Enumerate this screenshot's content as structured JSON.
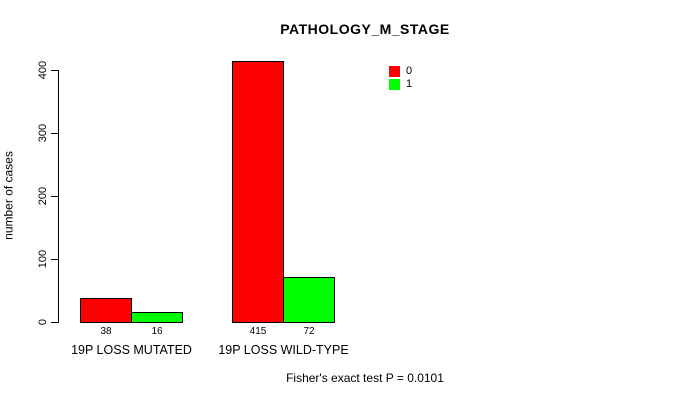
{
  "chart_data": {
    "type": "bar",
    "title": "PATHOLOGY_M_STAGE",
    "ylabel": "number of cases",
    "xlabel": "",
    "ylim": [
      0,
      400
    ],
    "yticks": [
      0,
      100,
      200,
      300,
      400
    ],
    "categories": [
      "19P LOSS MUTATED",
      "19P LOSS WILD-TYPE"
    ],
    "series": [
      {
        "name": "0",
        "color": "#ff0000",
        "values": [
          38,
          415
        ]
      },
      {
        "name": "1",
        "color": "#00ff00",
        "values": [
          16,
          72
        ]
      }
    ],
    "bar_value_labels": [
      [
        "38",
        "16"
      ],
      [
        "415",
        "72"
      ]
    ],
    "legend_position": "top-right",
    "grid": false,
    "annotation": "Fisher's exact test P = 0.0101",
    "background_color": "#ffffff",
    "text_color": "#000000"
  }
}
